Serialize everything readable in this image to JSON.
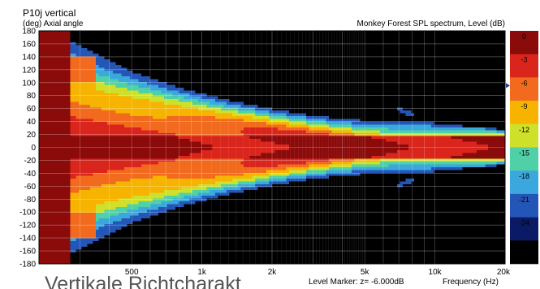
{
  "chart_data": {
    "type": "heatmap",
    "title": "P10j vertical",
    "ylabel": "(deg)  Axial angle",
    "subtitle": "Monkey Forest SPL spectrum, Level  (dB)",
    "xlabel": "Frequency  (Hz)",
    "marker_text": "Level Marker:  z= -6.000dB",
    "x_scale": "log",
    "xlim": [
      200,
      20000
    ],
    "ylim": [
      -180,
      180
    ],
    "x_ticks": [
      {
        "value": 500,
        "label": "500"
      },
      {
        "value": 1000,
        "label": "1k"
      },
      {
        "value": 2000,
        "label": "2k"
      },
      {
        "value": 5000,
        "label": "5k"
      },
      {
        "value": 10000,
        "label": "10k"
      },
      {
        "value": 20000,
        "label": "20k"
      }
    ],
    "y_ticks": [
      180,
      160,
      140,
      120,
      100,
      80,
      60,
      40,
      20,
      0,
      -20,
      -40,
      -60,
      -80,
      -100,
      -120,
      -140,
      -160,
      -180
    ],
    "y_tick_labels": [
      "180",
      "160",
      "140",
      "120",
      "100",
      "80",
      "60",
      "40",
      "20",
      "0",
      "-20",
      "-40",
      "-60",
      "-80",
      "-100",
      "-120",
      "-140",
      "-160",
      "-180"
    ],
    "grid": true,
    "colorbar": {
      "labels": [
        "0",
        "-3",
        "-6",
        "-9",
        "-12",
        "-15",
        "-18",
        "-21",
        "-24"
      ],
      "levels": [
        0,
        -3,
        -6,
        -9,
        -12,
        -15,
        -18,
        -21,
        -24
      ],
      "colors": [
        "#8b0a0a",
        "#d9251c",
        "#f26a1e",
        "#f6b400",
        "#cfe02b",
        "#4fd0a6",
        "#3aa8dd",
        "#2456b8",
        "#0b1a66",
        "#000000"
      ],
      "marker_level": -6
    }
  },
  "footer": {
    "text": "Vertikale Richtcharakt"
  }
}
